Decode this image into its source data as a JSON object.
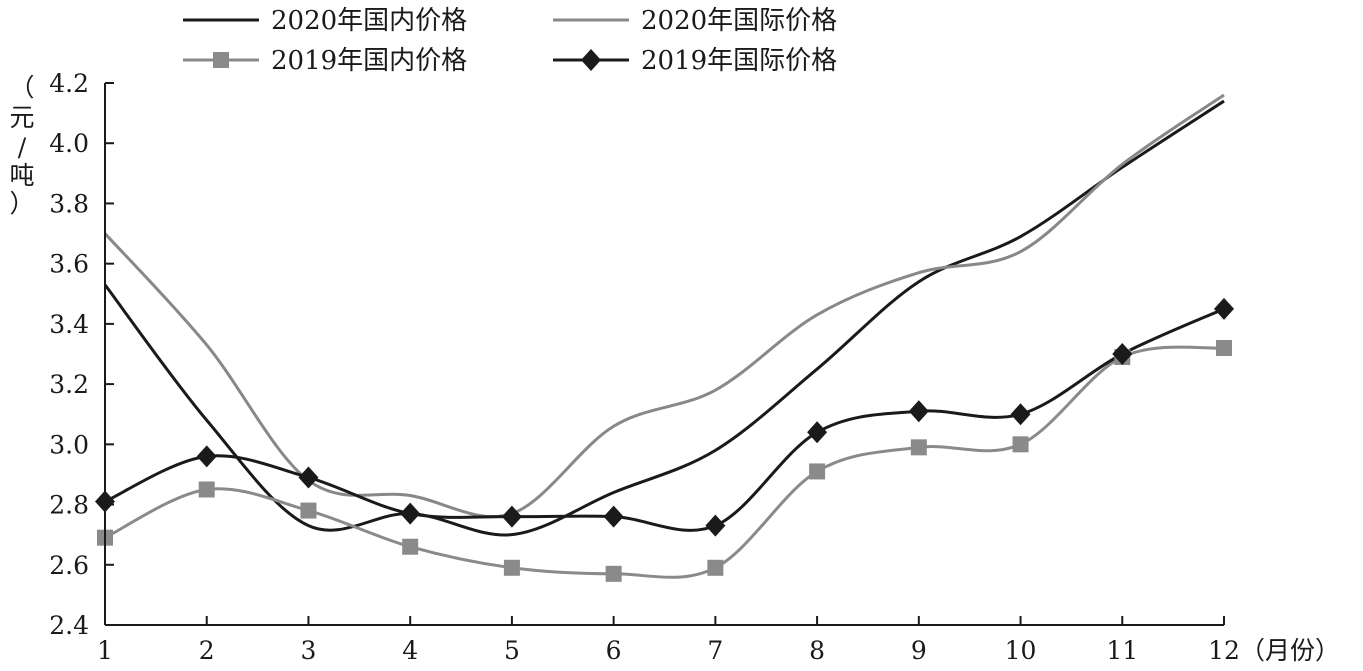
{
  "chart_data": {
    "type": "line",
    "title": "",
    "xlabel": "（月份）",
    "ylabel": "（元/吨）",
    "categories": [
      "1",
      "2",
      "3",
      "4",
      "5",
      "6",
      "7",
      "8",
      "9",
      "10",
      "11",
      "12"
    ],
    "ylim": [
      2.4,
      4.2
    ],
    "yticks": [
      "2.4",
      "2.6",
      "2.8",
      "3.0",
      "3.2",
      "3.4",
      "3.6",
      "3.8",
      "4.0",
      "4.2"
    ],
    "grid": false,
    "legend_position": "top",
    "series": [
      {
        "name": "2020年国内价格",
        "color": "#1a1a1a",
        "marker": "none",
        "values": [
          3.53,
          3.08,
          2.73,
          2.77,
          2.7,
          2.84,
          2.98,
          3.25,
          3.54,
          3.69,
          3.92,
          4.14
        ]
      },
      {
        "name": "2020年国际价格",
        "color": "#888888",
        "marker": "none",
        "values": [
          3.7,
          3.33,
          2.88,
          2.83,
          2.77,
          3.06,
          3.18,
          3.43,
          3.57,
          3.64,
          3.93,
          4.16
        ]
      },
      {
        "name": "2019年国内价格",
        "color": "#8a8a8a",
        "marker": "square",
        "values": [
          2.69,
          2.85,
          2.78,
          2.66,
          2.59,
          2.57,
          2.59,
          2.91,
          2.99,
          3.0,
          3.29,
          3.32
        ]
      },
      {
        "name": "2019年国际价格",
        "color": "#1a1a1a",
        "marker": "diamond",
        "values": [
          2.81,
          2.96,
          2.89,
          2.77,
          2.76,
          2.76,
          2.73,
          3.04,
          3.11,
          3.1,
          3.3,
          3.45
        ]
      }
    ]
  }
}
